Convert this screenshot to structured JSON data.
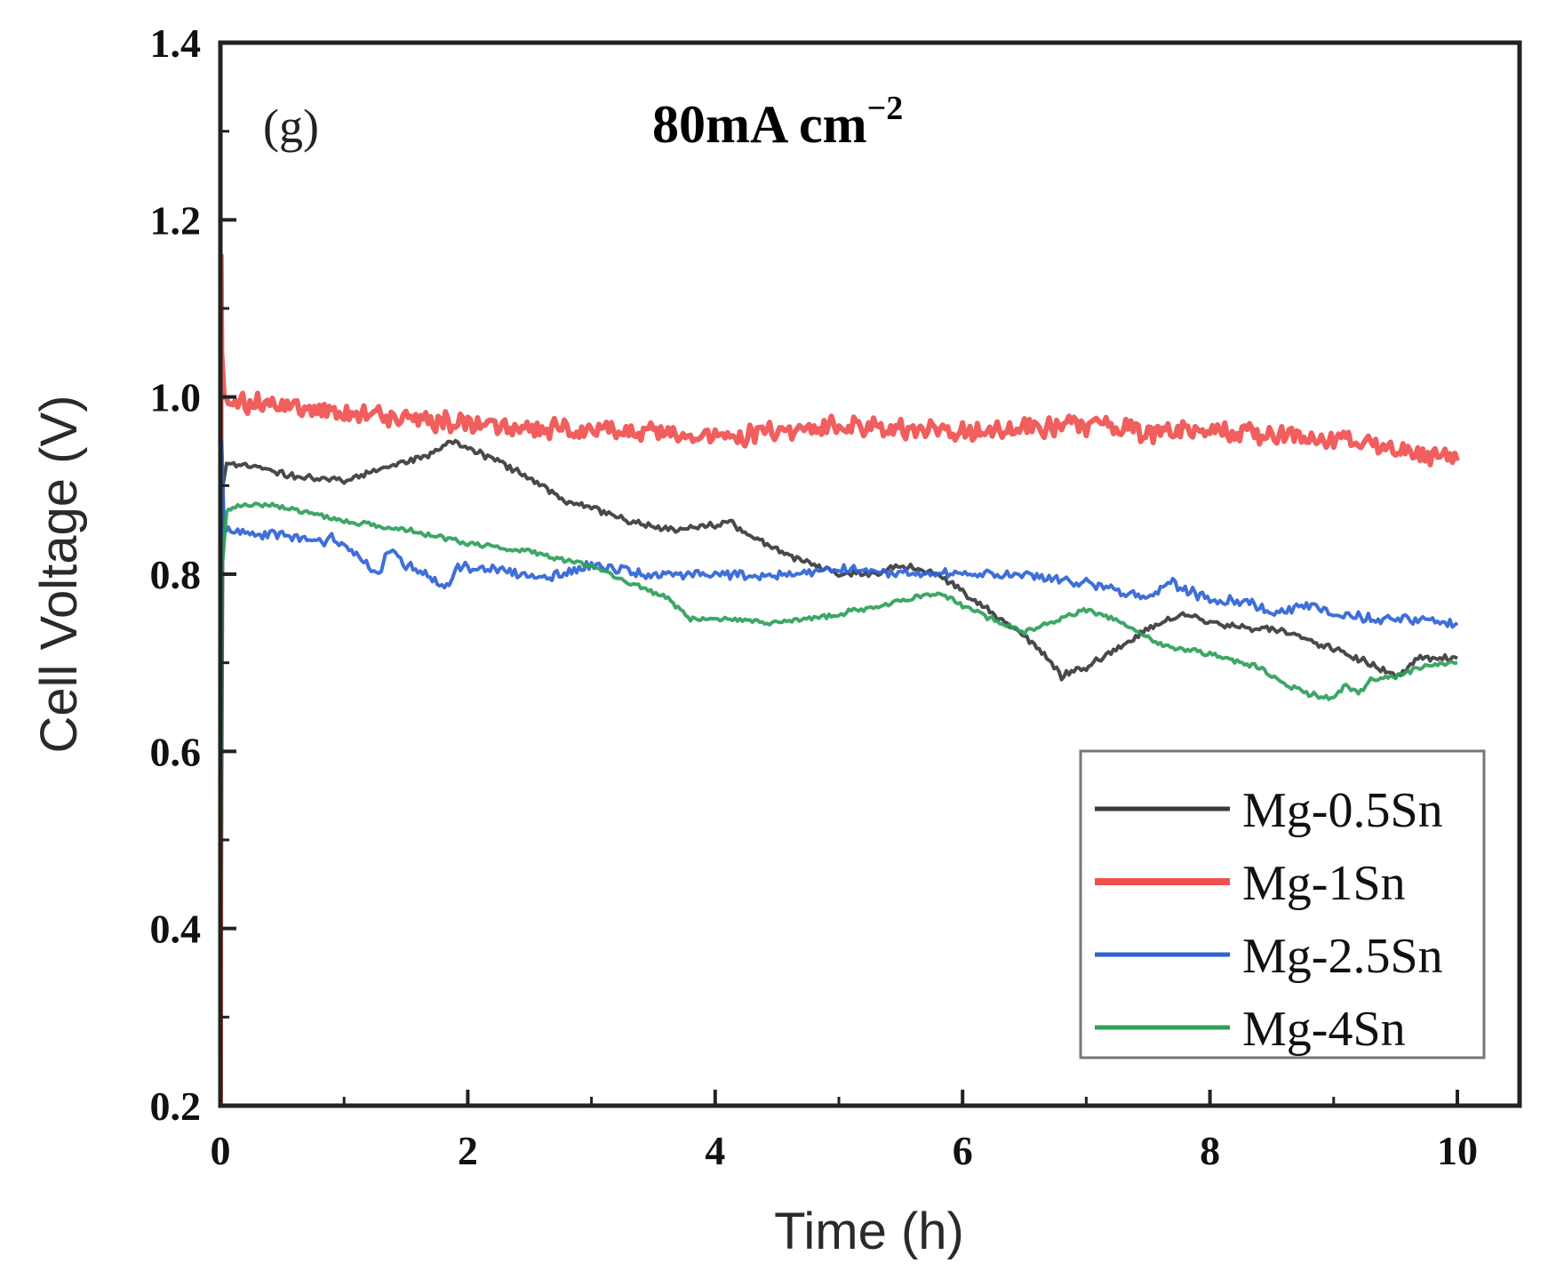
{
  "chart_data": {
    "type": "line",
    "panel_label": "(g)",
    "title_main": "80mA  cm",
    "title_sup": "−2",
    "xlabel": "Time (h)",
    "ylabel": "Cell Voltage (V)",
    "xlim": [
      0,
      10
    ],
    "ylim": [
      0.2,
      1.4
    ],
    "xticks": [
      0,
      2,
      4,
      6,
      8,
      10
    ],
    "xtick_labels": [
      "0",
      "2",
      "4",
      "6",
      "8",
      "10"
    ],
    "yticks": [
      0.2,
      0.4,
      0.6,
      0.8,
      1.0,
      1.2,
      1.4
    ],
    "ytick_labels": [
      "0.2",
      "0.4",
      "0.6",
      "0.8",
      "1.0",
      "1.2",
      "1.4"
    ],
    "legend_position": "bottom-right",
    "series": [
      {
        "name": "Mg-0.5Sn",
        "color": "#3a3a3a",
        "noise": 0.004,
        "x": [
          0,
          0.02,
          0.05,
          0.3,
          0.6,
          1.0,
          1.3,
          1.6,
          1.9,
          2.2,
          2.5,
          2.8,
          3.0,
          3.3,
          3.6,
          4.0,
          4.1,
          4.4,
          4.7,
          5.0,
          5.3,
          5.5,
          5.8,
          6.0,
          6.3,
          6.6,
          6.8,
          7.0,
          7.3,
          7.5,
          7.8,
          8.0,
          8.3,
          8.6,
          9.0,
          9.3,
          9.5,
          9.7,
          10.0
        ],
        "y": [
          0.2,
          0.9,
          0.925,
          0.92,
          0.91,
          0.905,
          0.92,
          0.93,
          0.95,
          0.93,
          0.91,
          0.88,
          0.875,
          0.86,
          0.85,
          0.855,
          0.86,
          0.835,
          0.815,
          0.8,
          0.8,
          0.81,
          0.8,
          0.78,
          0.75,
          0.72,
          0.685,
          0.695,
          0.72,
          0.74,
          0.755,
          0.745,
          0.74,
          0.735,
          0.715,
          0.7,
          0.685,
          0.705,
          0.705
        ]
      },
      {
        "name": "Mg-1Sn",
        "color": "#f05050",
        "noise": 0.012,
        "x": [
          0,
          0.005,
          0.01,
          0.03,
          0.1,
          0.5,
          1.0,
          1.5,
          2.0,
          2.5,
          3.0,
          3.5,
          4.0,
          4.2,
          4.5,
          5.0,
          5.5,
          6.0,
          6.5,
          7.0,
          7.5,
          8.0,
          8.5,
          9.0,
          9.5,
          10.0
        ],
        "y": [
          0.2,
          1.16,
          1.05,
          1.0,
          0.995,
          0.99,
          0.985,
          0.975,
          0.97,
          0.965,
          0.965,
          0.962,
          0.955,
          0.955,
          0.962,
          0.968,
          0.965,
          0.96,
          0.965,
          0.968,
          0.96,
          0.962,
          0.958,
          0.952,
          0.942,
          0.928
        ]
      },
      {
        "name": "Mg-2.5Sn",
        "color": "#2f63d6",
        "noise": 0.006,
        "x": [
          0,
          0.01,
          0.03,
          0.1,
          0.5,
          0.8,
          0.9,
          1.3,
          1.35,
          1.5,
          1.85,
          1.9,
          2.2,
          2.5,
          2.6,
          3.0,
          3.5,
          4.0,
          4.5,
          5.0,
          5.5,
          6.0,
          6.5,
          7.0,
          7.5,
          7.7,
          8.0,
          8.3,
          8.5,
          8.8,
          9.0,
          9.3,
          9.6,
          10.0
        ],
        "y": [
          0.38,
          0.95,
          0.85,
          0.845,
          0.845,
          0.835,
          0.84,
          0.8,
          0.83,
          0.81,
          0.785,
          0.81,
          0.805,
          0.8,
          0.795,
          0.81,
          0.8,
          0.8,
          0.8,
          0.805,
          0.8,
          0.8,
          0.8,
          0.79,
          0.775,
          0.79,
          0.77,
          0.77,
          0.755,
          0.765,
          0.755,
          0.75,
          0.75,
          0.745
        ]
      },
      {
        "name": "Mg-4Sn",
        "color": "#2ea05a",
        "noise": 0.003,
        "x": [
          0,
          0.01,
          0.05,
          0.1,
          0.3,
          0.5,
          1.0,
          1.5,
          2.0,
          2.5,
          3.0,
          3.3,
          3.6,
          3.8,
          4.0,
          4.5,
          5.0,
          5.5,
          5.8,
          6.0,
          6.3,
          6.5,
          6.7,
          7.0,
          7.3,
          7.6,
          8.0,
          8.4,
          8.6,
          8.8,
          9.0,
          9.1,
          9.2,
          9.3,
          9.5,
          9.7,
          10.0
        ],
        "y": [
          0.2,
          0.8,
          0.87,
          0.875,
          0.88,
          0.875,
          0.86,
          0.85,
          0.835,
          0.825,
          0.81,
          0.79,
          0.775,
          0.75,
          0.75,
          0.745,
          0.755,
          0.77,
          0.78,
          0.765,
          0.745,
          0.735,
          0.745,
          0.76,
          0.745,
          0.72,
          0.71,
          0.695,
          0.675,
          0.665,
          0.66,
          0.675,
          0.665,
          0.68,
          0.685,
          0.695,
          0.7
        ]
      }
    ]
  }
}
